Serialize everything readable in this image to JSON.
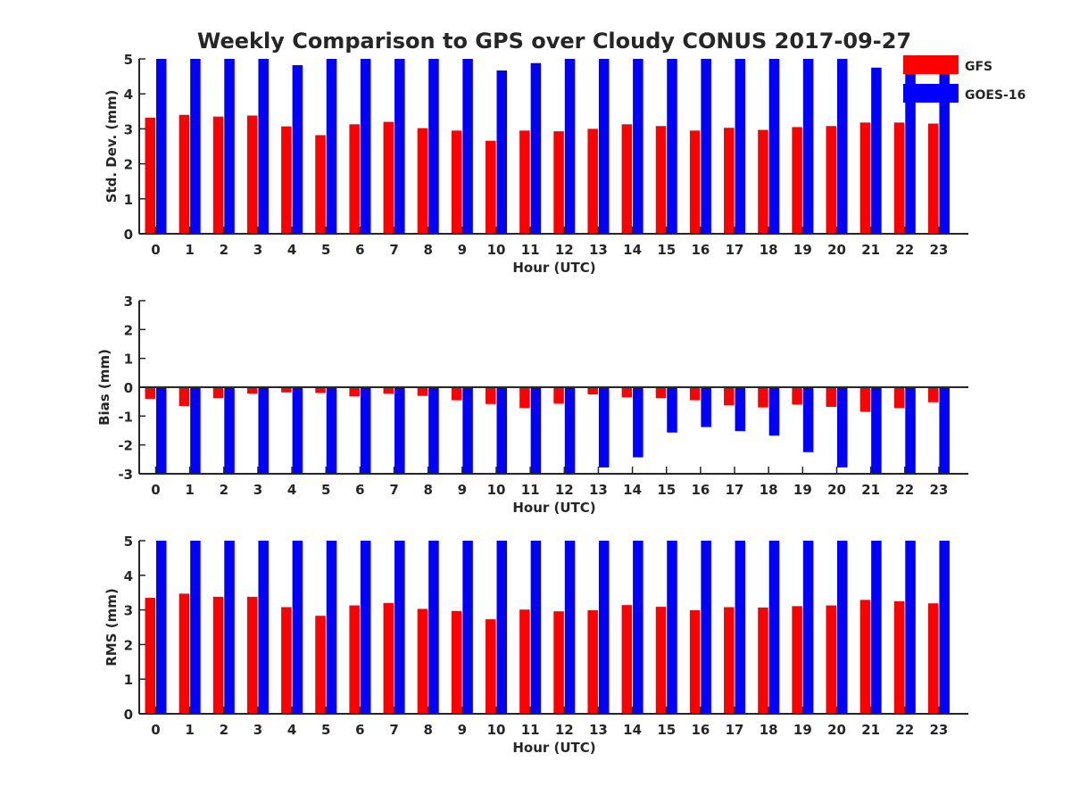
{
  "chart_data": {
    "title": "Weekly Comparison to GPS over Cloudy CONUS 2017-09-27",
    "type": "bar",
    "legend": {
      "placement": "top-right",
      "entries": [
        {
          "name": "GFS",
          "color": "#ff0000"
        },
        {
          "name": "GOES-16",
          "color": "#0000ff"
        }
      ]
    },
    "categories": [
      "0",
      "1",
      "2",
      "3",
      "4",
      "5",
      "6",
      "7",
      "8",
      "9",
      "10",
      "11",
      "12",
      "13",
      "14",
      "15",
      "16",
      "17",
      "18",
      "19",
      "20",
      "21",
      "22",
      "23"
    ],
    "panels": [
      {
        "ylabel": "Std. Dev. (mm)",
        "xlabel": "Hour (UTC)",
        "ylim": [
          0,
          5
        ],
        "yticks": [
          "0",
          "1",
          "2",
          "3",
          "4",
          "5"
        ],
        "grid": false,
        "series": [
          {
            "name": "GFS",
            "color": "#ff0000",
            "values": [
              3.32,
              3.4,
              3.35,
              3.38,
              3.07,
              2.82,
              3.13,
              3.2,
              3.02,
              2.95,
              2.66,
              2.95,
              2.93,
              3.0,
              3.13,
              3.08,
              2.95,
              3.03,
              2.97,
              3.05,
              3.08,
              3.18,
              3.18,
              3.15
            ]
          },
          {
            "name": "GOES-16",
            "color": "#0000ff",
            "values": [
              5,
              5,
              5,
              5,
              4.82,
              5,
              5,
              5,
              5,
              5,
              4.67,
              4.88,
              5,
              5,
              5,
              5,
              5,
              5,
              5,
              5,
              5,
              4.75,
              5,
              5
            ]
          }
        ]
      },
      {
        "ylabel": "Bias (mm)",
        "xlabel": "Hour (UTC)",
        "ylim": [
          -3,
          3
        ],
        "yticks": [
          "-3",
          "-2",
          "-1",
          "0",
          "1",
          "2",
          "3"
        ],
        "grid": false,
        "series": [
          {
            "name": "GFS",
            "color": "#ff0000",
            "values": [
              -0.4,
              -0.65,
              -0.38,
              -0.22,
              -0.18,
              -0.2,
              -0.32,
              -0.22,
              -0.3,
              -0.45,
              -0.58,
              -0.72,
              -0.57,
              -0.25,
              -0.35,
              -0.38,
              -0.45,
              -0.63,
              -0.7,
              -0.6,
              -0.68,
              -0.85,
              -0.72,
              -0.52
            ]
          },
          {
            "name": "GOES-16",
            "color": "#0000ff",
            "values": [
              -3,
              -3,
              -3,
              -3,
              -3,
              -3,
              -3,
              -3,
              -3,
              -3,
              -3,
              -3,
              -3,
              -2.78,
              -2.43,
              -1.57,
              -1.38,
              -1.52,
              -1.68,
              -2.25,
              -2.78,
              -3,
              -3,
              -3
            ]
          }
        ]
      },
      {
        "ylabel": "RMS (mm)",
        "xlabel": "Hour (UTC)",
        "ylim": [
          0,
          5
        ],
        "yticks": [
          "0",
          "1",
          "2",
          "3",
          "4",
          "5"
        ],
        "grid": false,
        "series": [
          {
            "name": "GFS",
            "color": "#ff0000",
            "values": [
              3.35,
              3.47,
              3.38,
              3.38,
              3.08,
              2.83,
              3.13,
              3.2,
              3.03,
              2.97,
              2.73,
              3.01,
              2.96,
              2.99,
              3.14,
              3.09,
              2.99,
              3.08,
              3.07,
              3.11,
              3.13,
              3.29,
              3.25,
              3.19
            ]
          },
          {
            "name": "GOES-16",
            "color": "#0000ff",
            "values": [
              5,
              5,
              5,
              5,
              5,
              5,
              5,
              5,
              5,
              5,
              5,
              5,
              5,
              5,
              5,
              5,
              5,
              5,
              5,
              5,
              5,
              5,
              5,
              5
            ]
          }
        ]
      }
    ]
  }
}
